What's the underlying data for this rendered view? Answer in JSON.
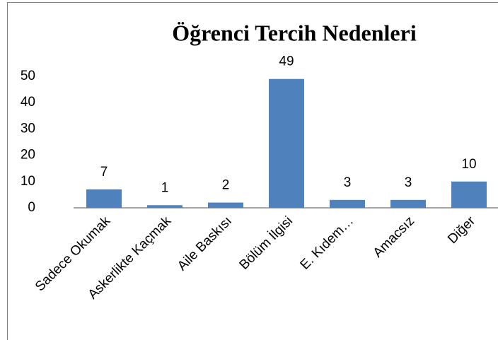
{
  "chart_data": {
    "type": "bar",
    "title": "Öğrenci Tercih Nedenleri",
    "categories": [
      "Sadece Okumak",
      "Askerlikte Kaçmak",
      "Aile Baskısı",
      "Bölüm İlgisi",
      "E. Kıdem…",
      "Amacsız",
      "Diğer"
    ],
    "values": [
      7,
      1,
      2,
      49,
      3,
      3,
      10
    ],
    "color": "#4f81bd",
    "ylim": [
      0,
      50
    ],
    "yticks": [
      0,
      10,
      20,
      30,
      40,
      50
    ],
    "grid": false
  }
}
